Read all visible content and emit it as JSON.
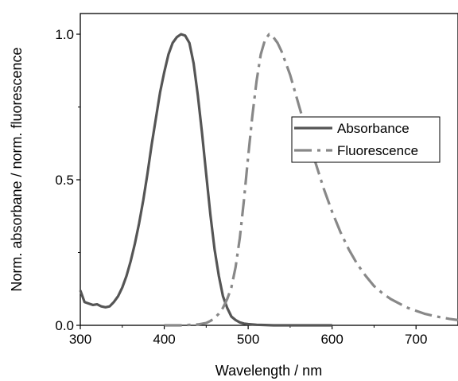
{
  "chart_data": {
    "type": "line",
    "title": "",
    "xlabel": "Wavelength / nm",
    "ylabel": "Norm. absorbane / norm. fluorescence",
    "xlim": [
      300,
      750
    ],
    "ylim": [
      0.0,
      1.0
    ],
    "xticks": [
      "300",
      "400",
      "500",
      "600",
      "700"
    ],
    "yticks": [
      "0.0",
      "0.5",
      "1.0"
    ],
    "grid": false,
    "legend_position": "right",
    "series": [
      {
        "name": "Absorbance",
        "color": "#555555",
        "style": "solid",
        "x": [
          300,
          305,
          310,
          315,
          320,
          325,
          330,
          335,
          340,
          345,
          350,
          355,
          360,
          365,
          370,
          375,
          380,
          385,
          390,
          395,
          400,
          405,
          410,
          415,
          420,
          425,
          430,
          435,
          440,
          445,
          450,
          455,
          460,
          465,
          470,
          475,
          480,
          485,
          490,
          495,
          500,
          510,
          520,
          530,
          540,
          550,
          560,
          570,
          580,
          590,
          600
        ],
        "y": [
          0.12,
          0.08,
          0.075,
          0.07,
          0.072,
          0.065,
          0.062,
          0.065,
          0.08,
          0.1,
          0.13,
          0.17,
          0.22,
          0.28,
          0.35,
          0.43,
          0.52,
          0.62,
          0.71,
          0.8,
          0.87,
          0.93,
          0.97,
          0.99,
          1.0,
          0.995,
          0.97,
          0.9,
          0.79,
          0.66,
          0.52,
          0.38,
          0.26,
          0.17,
          0.1,
          0.06,
          0.03,
          0.018,
          0.01,
          0.006,
          0.004,
          0.002,
          0.001,
          0.0,
          0.0,
          0.0,
          0.0,
          0.0,
          0.0,
          0.0,
          0.0
        ]
      },
      {
        "name": "Fluorescence",
        "color": "#888888",
        "style": "dash-dot",
        "x": [
          400,
          420,
          440,
          450,
          455,
          460,
          465,
          470,
          475,
          480,
          485,
          490,
          495,
          500,
          505,
          510,
          515,
          520,
          525,
          530,
          535,
          540,
          545,
          550,
          555,
          560,
          570,
          580,
          590,
          600,
          610,
          620,
          630,
          640,
          650,
          660,
          670,
          680,
          690,
          700,
          710,
          720,
          730,
          740,
          750
        ],
        "y": [
          0.0,
          0.0,
          0.003,
          0.008,
          0.015,
          0.025,
          0.04,
          0.06,
          0.09,
          0.13,
          0.2,
          0.3,
          0.43,
          0.58,
          0.72,
          0.84,
          0.93,
          0.98,
          1.0,
          0.99,
          0.97,
          0.94,
          0.9,
          0.86,
          0.81,
          0.76,
          0.66,
          0.56,
          0.47,
          0.39,
          0.32,
          0.26,
          0.21,
          0.17,
          0.135,
          0.11,
          0.09,
          0.075,
          0.06,
          0.05,
          0.04,
          0.033,
          0.027,
          0.022,
          0.018
        ]
      }
    ]
  }
}
